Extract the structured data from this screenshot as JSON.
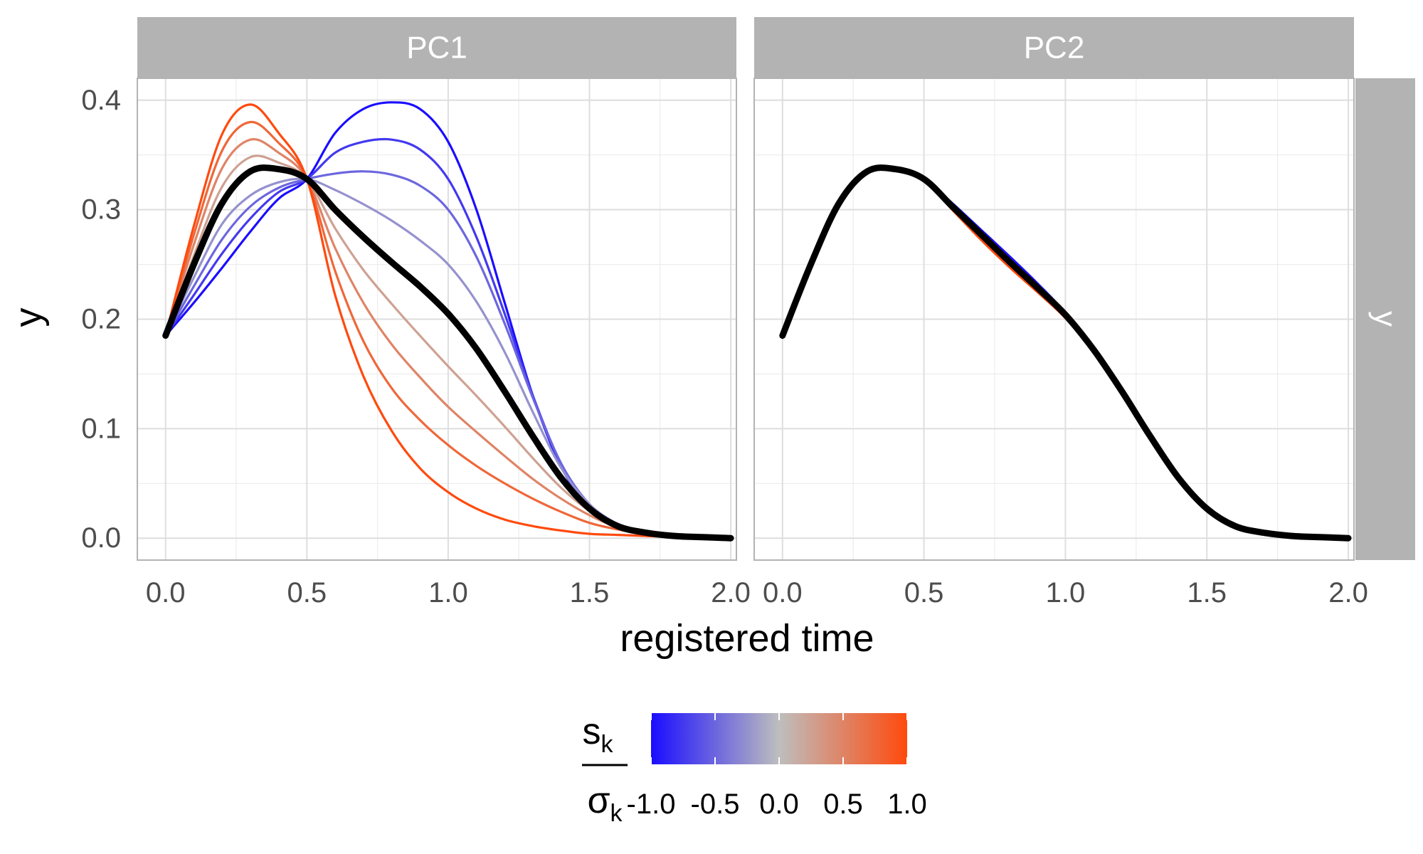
{
  "chart_data": {
    "type": "line",
    "xlabel": "registered time",
    "ylabel": "y",
    "xlim": [
      -0.1,
      2.02
    ],
    "ylim": [
      -0.02,
      0.42
    ],
    "x_ticks": [
      "0.0",
      "0.5",
      "1.0",
      "1.5",
      "2.0"
    ],
    "y_ticks": [
      "0.0",
      "0.1",
      "0.2",
      "0.3",
      "0.4"
    ],
    "facet_row_label": "y",
    "legend": {
      "title_numerator": "s",
      "title_numerator_sub": "k",
      "title_denominator": "σ",
      "title_denominator_sub": "k",
      "ticks": [
        "-1.0",
        "-0.5",
        "0.0",
        "0.5",
        "1.0"
      ],
      "colors": {
        "low": "#1a0dff",
        "mid": "#bebebe",
        "high": "#ff4a0d"
      },
      "placement": "bottom"
    },
    "x": [
      0.0,
      0.1,
      0.2,
      0.3,
      0.4,
      0.5,
      0.6,
      0.7,
      0.8,
      0.9,
      1.0,
      1.1,
      1.2,
      1.3,
      1.4,
      1.5,
      1.6,
      1.7,
      1.8,
      1.9,
      2.0
    ],
    "panels": [
      {
        "label": "PC1",
        "series": [
          {
            "level": -1.0,
            "values": [
              0.185,
              0.215,
              0.247,
              0.28,
              0.31,
              0.328,
              0.37,
              0.392,
              0.398,
              0.392,
              0.362,
              0.3,
              0.215,
              0.13,
              0.065,
              0.028,
              0.01,
              0.004,
              0.002,
              0.001,
              0.0
            ]
          },
          {
            "level": -0.75,
            "values": [
              0.185,
              0.222,
              0.26,
              0.292,
              0.316,
              0.328,
              0.352,
              0.362,
              0.364,
              0.355,
              0.328,
              0.275,
              0.205,
              0.13,
              0.068,
              0.03,
              0.012,
              0.005,
              0.002,
              0.001,
              0.0
            ]
          },
          {
            "level": -0.5,
            "values": [
              0.185,
              0.23,
              0.273,
              0.303,
              0.32,
              0.328,
              0.333,
              0.335,
              0.332,
              0.322,
              0.3,
              0.257,
              0.196,
              0.128,
              0.068,
              0.031,
              0.012,
              0.005,
              0.002,
              0.001,
              0.0
            ]
          },
          {
            "level": -0.25,
            "values": [
              0.185,
              0.238,
              0.287,
              0.313,
              0.325,
              0.328,
              0.318,
              0.305,
              0.29,
              0.272,
              0.25,
              0.216,
              0.17,
              0.115,
              0.064,
              0.031,
              0.013,
              0.005,
              0.002,
              0.001,
              0.0
            ]
          },
          {
            "level": 0.25,
            "values": [
              0.185,
              0.258,
              0.321,
              0.348,
              0.343,
              0.328,
              0.283,
              0.245,
              0.214,
              0.185,
              0.157,
              0.13,
              0.102,
              0.073,
              0.046,
              0.025,
              0.012,
              0.005,
              0.002,
              0.001,
              0.0
            ]
          },
          {
            "level": 0.5,
            "values": [
              0.185,
              0.268,
              0.338,
              0.364,
              0.352,
              0.328,
              0.265,
              0.215,
              0.177,
              0.147,
              0.12,
              0.097,
              0.075,
              0.054,
              0.036,
              0.021,
              0.01,
              0.005,
              0.002,
              0.001,
              0.0
            ]
          },
          {
            "level": 0.75,
            "values": [
              0.185,
              0.277,
              0.354,
              0.38,
              0.361,
              0.328,
              0.244,
              0.18,
              0.137,
              0.108,
              0.085,
              0.066,
              0.05,
              0.036,
              0.024,
              0.014,
              0.008,
              0.004,
              0.002,
              0.001,
              0.0
            ]
          },
          {
            "level": 1.0,
            "values": [
              0.185,
              0.285,
              0.369,
              0.396,
              0.37,
              0.328,
              0.222,
              0.148,
              0.098,
              0.064,
              0.042,
              0.027,
              0.017,
              0.011,
              0.007,
              0.004,
              0.003,
              0.002,
              0.001,
              0.001,
              0.0
            ]
          },
          {
            "level": "mean",
            "values": [
              0.185,
              0.25,
              0.306,
              0.335,
              0.337,
              0.328,
              0.3,
              0.275,
              0.252,
              0.23,
              0.205,
              0.173,
              0.134,
              0.093,
              0.055,
              0.027,
              0.011,
              0.005,
              0.002,
              0.001,
              0.0
            ]
          }
        ]
      },
      {
        "label": "PC2",
        "series": [
          {
            "level": -1.0,
            "values": [
              0.185,
              0.25,
              0.306,
              0.335,
              0.337,
              0.328,
              0.306,
              0.282,
              0.258,
              0.233,
              0.206,
              0.173,
              0.134,
              0.093,
              0.055,
              0.027,
              0.011,
              0.005,
              0.002,
              0.001,
              0.0
            ]
          },
          {
            "level": 1.0,
            "values": [
              0.185,
              0.25,
              0.306,
              0.335,
              0.337,
              0.328,
              0.3,
              0.273,
              0.248,
              0.225,
              0.201,
              0.171,
              0.134,
              0.093,
              0.055,
              0.027,
              0.011,
              0.005,
              0.002,
              0.001,
              0.0
            ]
          },
          {
            "level": "mean",
            "values": [
              0.185,
              0.25,
              0.306,
              0.335,
              0.337,
              0.328,
              0.303,
              0.278,
              0.253,
              0.229,
              0.204,
              0.172,
              0.134,
              0.093,
              0.055,
              0.027,
              0.011,
              0.005,
              0.002,
              0.001,
              0.0
            ]
          }
        ]
      }
    ]
  }
}
